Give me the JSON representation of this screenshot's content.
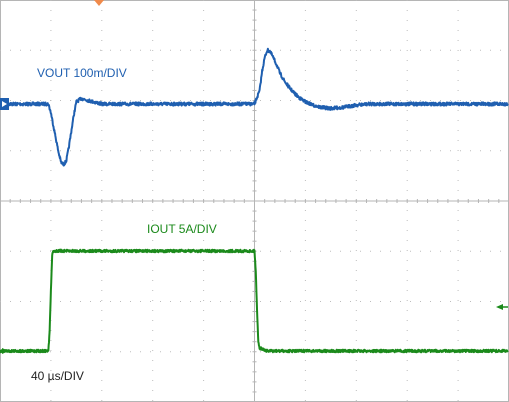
{
  "chart_data": [
    {
      "type": "line",
      "title": "",
      "label": "VOUT 100m/DIV",
      "color": "#1f5fb0",
      "xlabel": "",
      "ylabel": "",
      "grid": true,
      "x_units": "µs",
      "x": [
        0,
        10,
        20,
        30,
        35,
        38,
        40,
        42,
        44,
        46,
        48,
        50,
        52,
        54,
        56,
        58,
        60,
        64,
        70,
        80,
        100,
        120,
        140,
        150,
        160,
        175,
        190,
        200,
        204,
        206,
        208,
        210,
        212,
        214,
        216,
        218,
        220,
        224,
        228,
        232,
        236,
        240,
        246,
        252,
        260,
        270,
        280,
        290,
        300,
        320
      ],
      "y": [
        0,
        0,
        0,
        0,
        0,
        0,
        -0.08,
        -0.2,
        -0.32,
        -0.44,
        -0.53,
        -0.55,
        -0.52,
        -0.4,
        -0.25,
        -0.1,
        0.02,
        0.05,
        0.03,
        0,
        0,
        0,
        0,
        0,
        0,
        0,
        0,
        0,
        0.12,
        0.3,
        0.42,
        0.49,
        0.48,
        0.44,
        0.39,
        0.34,
        0.28,
        0.2,
        0.14,
        0.09,
        0.05,
        0.02,
        -0.01,
        -0.03,
        -0.04,
        -0.03,
        -0.01,
        0,
        0,
        0
      ],
      "ylim": [
        -1.6,
        1.6
      ]
    },
    {
      "type": "line",
      "title": "",
      "label": "IOUT 5A/DIV",
      "color": "#1b8a1b",
      "xlabel": "",
      "ylabel": "",
      "grid": true,
      "x_units": "µs",
      "x": [
        0,
        10,
        20,
        30,
        38,
        39,
        40,
        41,
        42,
        60,
        100,
        140,
        180,
        190,
        200,
        201,
        202,
        203,
        204,
        210,
        250,
        290,
        320
      ],
      "y": [
        0,
        0,
        0,
        0,
        0,
        2,
        6,
        9.6,
        10,
        10,
        10,
        10,
        10,
        10,
        10,
        8,
        4,
        1,
        0.3,
        0,
        0,
        0,
        0
      ]
    }
  ],
  "timebase_label": "40 µs/DIV",
  "marker_colors": {
    "trigger": "#f08a4b"
  }
}
